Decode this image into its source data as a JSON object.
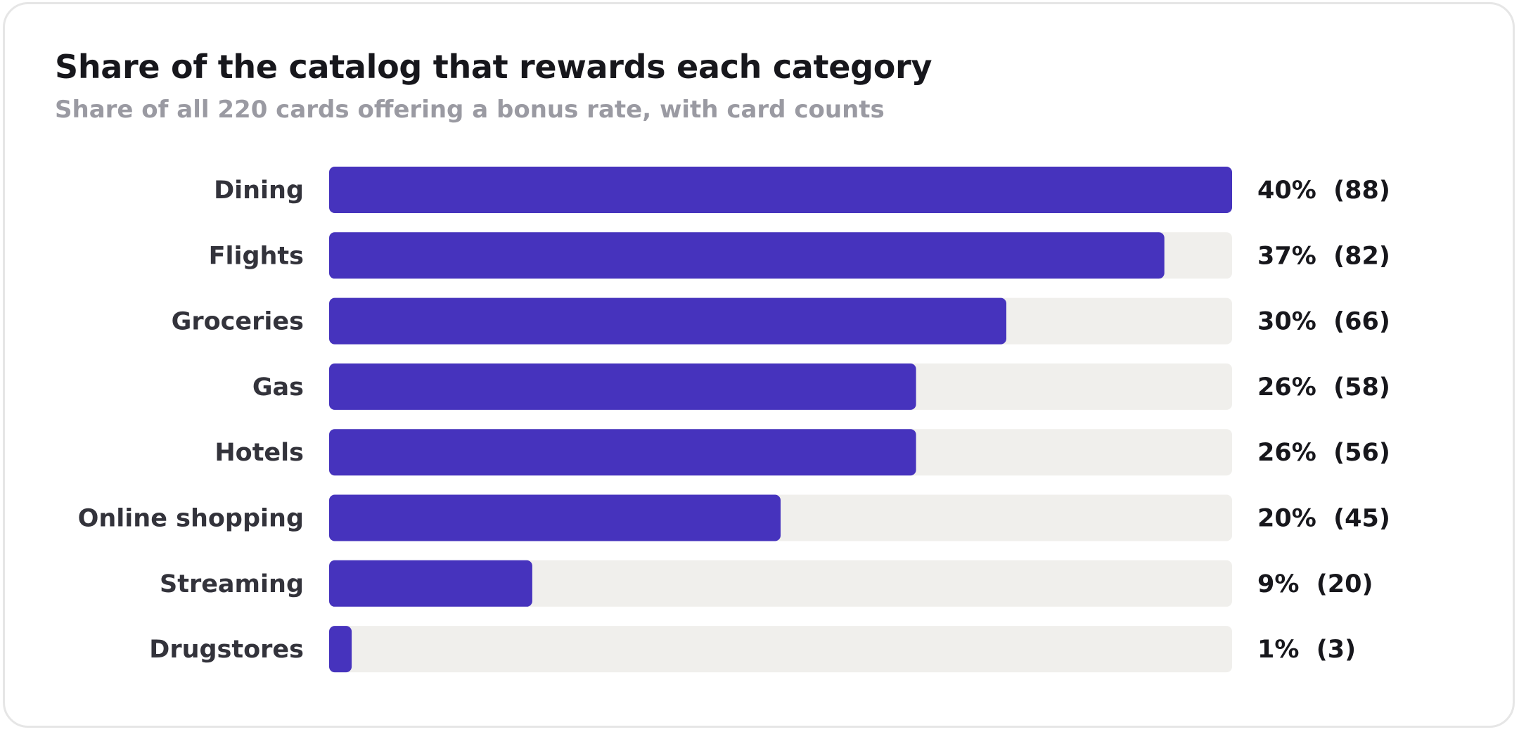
{
  "chart_data": {
    "type": "bar",
    "orientation": "horizontal",
    "title": "Share of the catalog that rewards each category",
    "subtitle": "Share of all 220 cards offering a bonus rate, with card counts",
    "categories": [
      "Dining",
      "Flights",
      "Groceries",
      "Gas",
      "Hotels",
      "Online shopping",
      "Streaming",
      "Drugstores"
    ],
    "values": [
      40,
      37,
      30,
      26,
      26,
      20,
      9,
      1
    ],
    "counts": [
      88,
      82,
      66,
      58,
      56,
      45,
      20,
      3
    ],
    "value_labels": [
      "40%  (88)",
      "37%  (82)",
      "30%  (66)",
      "26%  (58)",
      "26%  (56)",
      "20%  (45)",
      "9%  (20)",
      "1%  (3)"
    ],
    "total_cards": 220,
    "grid": false,
    "legend": "none",
    "colors": {
      "bar": "#4633bd",
      "track": "#f0efec",
      "category_text": "#33333b",
      "value_text": "#17171c"
    }
  }
}
